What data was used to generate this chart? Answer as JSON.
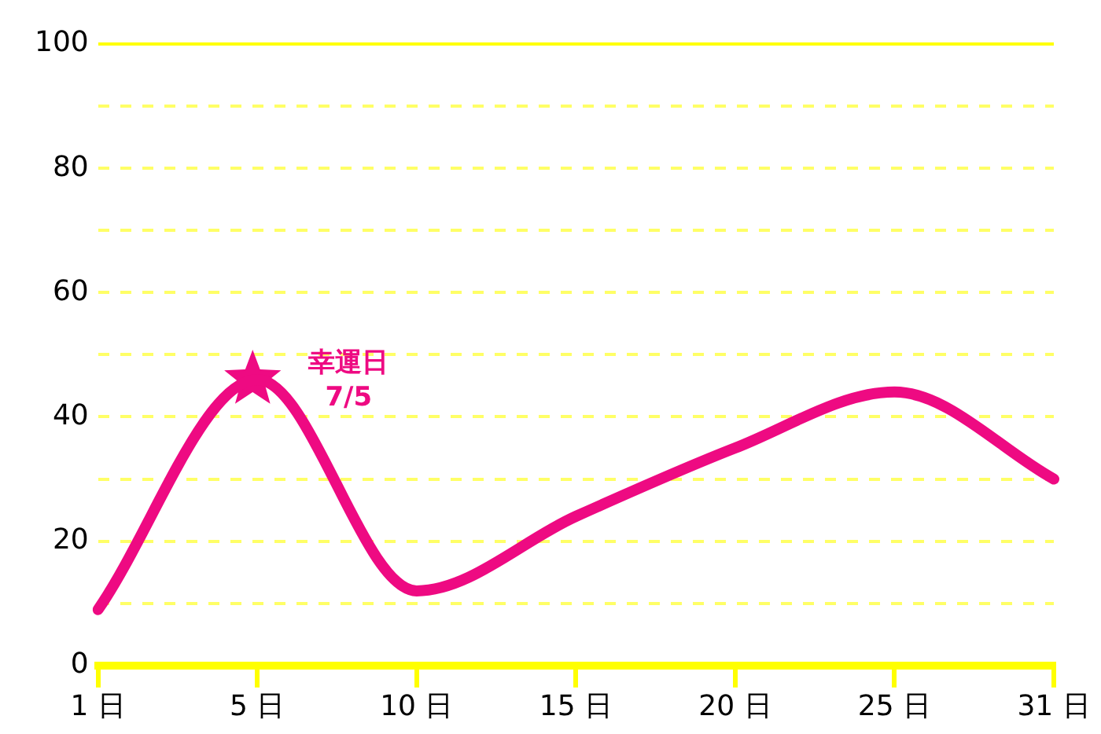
{
  "chart_data": {
    "type": "line",
    "categories": [
      "1 日",
      "5 日",
      "10 日",
      "15 日",
      "20 日",
      "25 日",
      "31 日"
    ],
    "series": [
      {
        "color": "#ee0a82",
        "values": [
          9,
          46,
          12,
          24,
          35,
          44,
          30
        ]
      }
    ],
    "ylim": [
      0,
      100
    ],
    "yticks": [
      0,
      {
        "value": 10,
        "label": null
      },
      20,
      {
        "value": 30,
        "label": null
      },
      40,
      {
        "value": 50,
        "label": null
      },
      60,
      {
        "value": 70,
        "label": null
      },
      80,
      {
        "value": 90,
        "label": null
      },
      100
    ],
    "grid": "y",
    "legend": false,
    "marker": "none",
    "line_style": "solid",
    "annotations": [
      {
        "text": "幸運日\n7/5",
        "x": "5 日",
        "y": 46
      }
    ]
  }
}
